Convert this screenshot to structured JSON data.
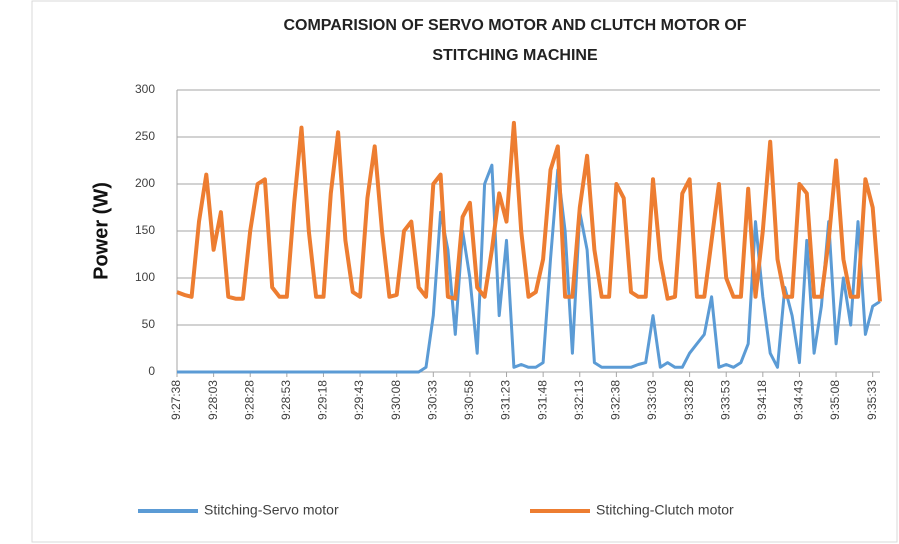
{
  "chart_data": {
    "type": "line",
    "title": [
      "COMPARISION OF SERVO MOTOR AND CLUTCH MOTOR OF",
      "STITCHING MACHINE"
    ],
    "y_label": "Power (W)",
    "categories": [
      "9:27:38",
      null,
      null,
      null,
      null,
      "9:28:03",
      null,
      null,
      null,
      null,
      "9:28:28",
      null,
      null,
      null,
      null,
      "9:28:53",
      null,
      null,
      null,
      null,
      "9:29:18",
      null,
      null,
      null,
      null,
      "9:29:43",
      null,
      null,
      null,
      null,
      "9:30:08",
      null,
      null,
      null,
      null,
      "9:30:33",
      null,
      null,
      null,
      null,
      "9:30:58",
      null,
      null,
      null,
      null,
      "9:31:23",
      null,
      null,
      null,
      null,
      "9:31:48",
      null,
      null,
      null,
      null,
      "9:32:13",
      null,
      null,
      null,
      null,
      "9:32:38",
      null,
      null,
      null,
      null,
      "9:33:03",
      null,
      null,
      null,
      null,
      "9:33:28",
      null,
      null,
      null,
      null,
      "9:33:53",
      null,
      null,
      null,
      null,
      "9:34:18",
      null,
      null,
      null,
      null,
      "9:34:43",
      null,
      null,
      null,
      null,
      "9:35:08",
      null,
      null,
      null,
      null,
      "9:35:33",
      null
    ],
    "series": [
      {
        "name": "Stitching-Servo motor",
        "color": "#5b9bd5",
        "values": [
          0,
          0,
          0,
          0,
          0,
          0,
          0,
          0,
          0,
          0,
          0,
          0,
          0,
          0,
          0,
          0,
          0,
          0,
          0,
          0,
          0,
          0,
          0,
          0,
          0,
          0,
          0,
          0,
          0,
          0,
          0,
          0,
          0,
          0,
          5,
          60,
          170,
          130,
          40,
          150,
          100,
          20,
          200,
          220,
          60,
          140,
          5,
          8,
          5,
          5,
          10,
          120,
          215,
          150,
          20,
          170,
          130,
          10,
          5,
          5,
          5,
          5,
          5,
          8,
          10,
          60,
          5,
          10,
          5,
          5,
          20,
          30,
          40,
          80,
          5,
          8,
          5,
          10,
          30,
          160,
          80,
          20,
          5,
          90,
          60,
          10,
          140,
          20,
          70,
          160,
          30,
          100,
          50,
          160,
          40,
          70,
          75
        ]
      },
      {
        "name": "Stitching-Clutch motor",
        "color": "#ed7d31",
        "values": [
          85,
          82,
          80,
          160,
          210,
          130,
          170,
          80,
          78,
          78,
          150,
          200,
          205,
          90,
          80,
          80,
          180,
          260,
          150,
          80,
          80,
          190,
          255,
          140,
          85,
          80,
          185,
          240,
          150,
          80,
          82,
          150,
          160,
          90,
          80,
          200,
          210,
          80,
          78,
          165,
          180,
          90,
          80,
          130,
          190,
          160,
          265,
          150,
          80,
          85,
          120,
          215,
          240,
          80,
          80,
          175,
          230,
          130,
          80,
          80,
          200,
          185,
          85,
          80,
          80,
          205,
          120,
          78,
          80,
          190,
          205,
          80,
          80,
          140,
          200,
          100,
          80,
          80,
          195,
          80,
          150,
          245,
          120,
          80,
          80,
          200,
          190,
          80,
          80,
          140,
          225,
          120,
          80,
          80,
          205,
          175,
          75
        ]
      }
    ],
    "ylim": [
      0,
      300
    ],
    "yticks": [
      0,
      50,
      100,
      150,
      200,
      250,
      300
    ],
    "grid": true,
    "legend": "bottom"
  }
}
